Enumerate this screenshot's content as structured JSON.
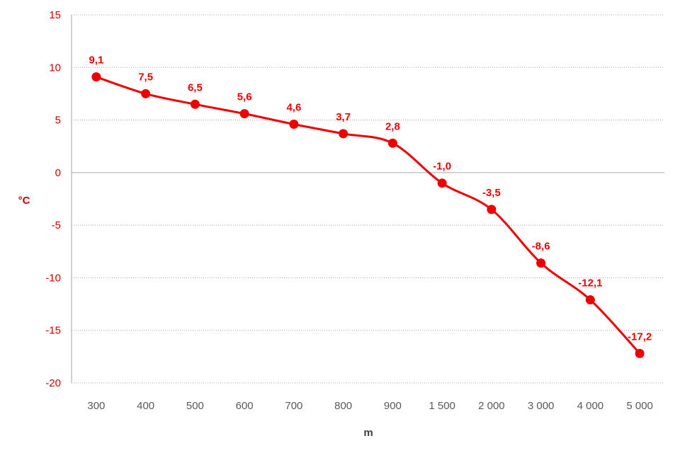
{
  "chart_data": {
    "type": "line",
    "categories": [
      "300",
      "400",
      "500",
      "600",
      "700",
      "800",
      "900",
      "1 500",
      "2 000",
      "3 000",
      "4 000",
      "5 000"
    ],
    "series": [
      {
        "values": [
          9.1,
          7.5,
          6.5,
          5.6,
          4.6,
          3.7,
          2.8,
          -1.0,
          -3.5,
          -8.6,
          -12.1,
          -17.2
        ]
      }
    ],
    "data_labels": [
      "9,1",
      "7,5",
      "6,5",
      "5,6",
      "4,6",
      "3,7",
      "2,8",
      "-1,0",
      "-3,5",
      "-8,6",
      "-12,1",
      "-17,2"
    ],
    "xlabel": "m",
    "ylabel": "°C",
    "ylim": [
      -20,
      15
    ],
    "yticks": [
      15,
      10,
      5,
      0,
      -5,
      -10,
      -15,
      -20
    ],
    "ytick_labels": [
      "15",
      "10",
      "5",
      "0",
      "-5",
      "-10",
      "-15",
      "-20"
    ],
    "grid": true,
    "smooth": true,
    "colors": {
      "series": "#ee0000",
      "ticks_y": "#cc0000",
      "ticks_x": "#595959",
      "grid": "#a6a6a6",
      "zero_line": "#a6a6a6",
      "axis_title_y": "#cc0000",
      "axis_title_x": "#404040"
    }
  }
}
